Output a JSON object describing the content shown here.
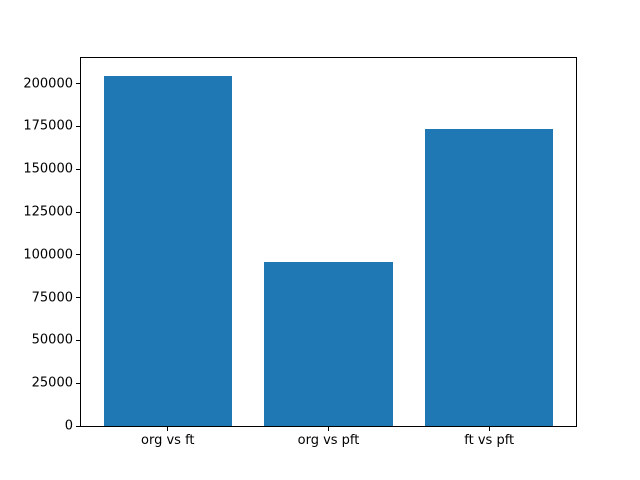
{
  "chart_data": {
    "type": "bar",
    "categories": [
      "org vs ft",
      "org vs pft",
      "ft vs pft"
    ],
    "values": [
      204700,
      95600,
      173400
    ],
    "yticks": [
      0,
      25000,
      50000,
      75000,
      100000,
      125000,
      150000,
      175000,
      200000
    ],
    "ylim": [
      0,
      215000
    ],
    "xlim": [
      -0.54,
      2.54
    ],
    "bar_width": 0.8,
    "bar_color": "#1f77b4",
    "spine_color": "#000000",
    "tick_label_color": "#000000",
    "title": "",
    "xlabel": "",
    "ylabel": "",
    "grid": false,
    "legend_position": "none"
  }
}
